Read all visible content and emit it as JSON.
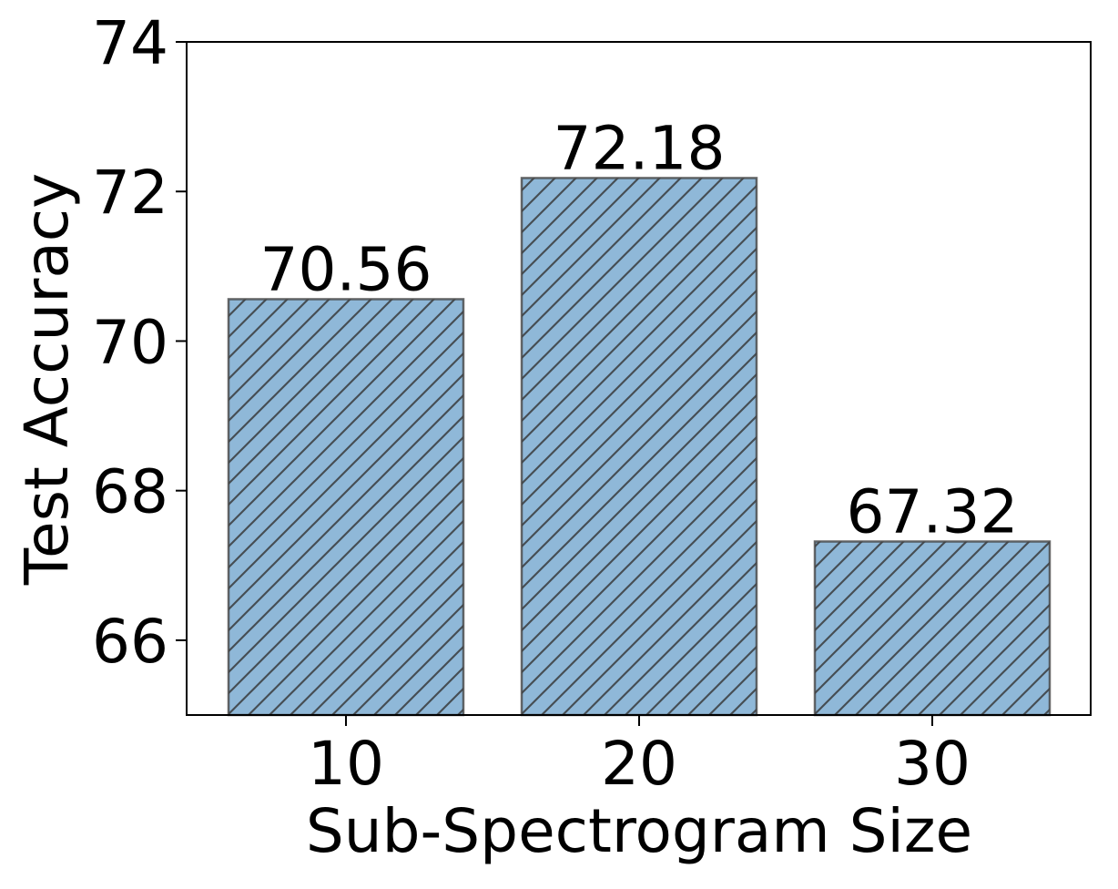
{
  "chart_data": {
    "type": "bar",
    "categories": [
      "10",
      "20",
      "30"
    ],
    "values": [
      70.56,
      72.18,
      67.32
    ],
    "data_labels": [
      "70.56",
      "72.18",
      "67.32"
    ],
    "xlabel": "Sub-Spectrogram Size",
    "ylabel": "Test Accuracy",
    "ylim": [
      65,
      74
    ],
    "yticks": [
      "66",
      "68",
      "70",
      "72",
      "74"
    ],
    "grid": false,
    "bar_color": "#8fb8d8",
    "bar_edge_color": "#444444",
    "hatch": "diagonal"
  }
}
